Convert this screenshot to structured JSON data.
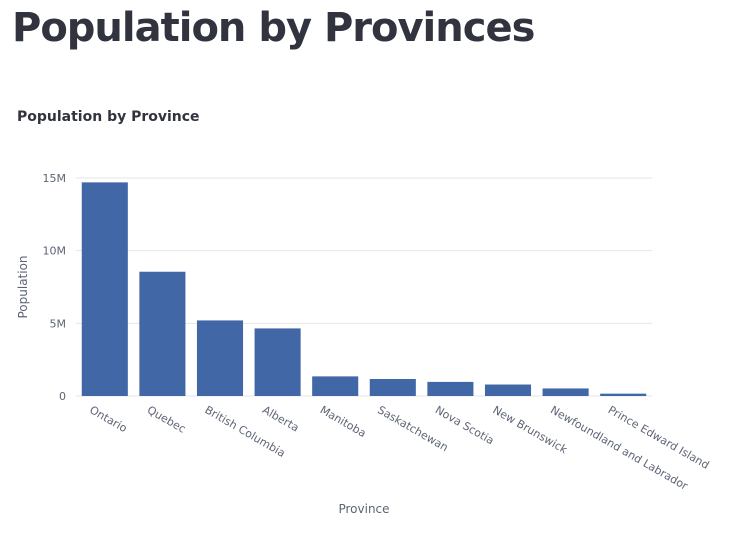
{
  "page": {
    "title": "Population by Provinces"
  },
  "chart_data": {
    "type": "bar",
    "title": "Population by Province",
    "xlabel": "Province",
    "ylabel": "Population",
    "categories": [
      "Ontario",
      "Quebec",
      "British Columbia",
      "Alberta",
      "Manitoba",
      "Saskatchewan",
      "Nova Scotia",
      "New Brunswick",
      "Newfoundland and Labrador",
      "Prince Edward Island"
    ],
    "values": [
      14700000,
      8550000,
      5200000,
      4650000,
      1350000,
      1170000,
      970000,
      790000,
      520000,
      160000
    ],
    "ylim": [
      0,
      15000000
    ],
    "yticks": [
      0,
      5000000,
      10000000,
      15000000
    ],
    "ytick_labels": [
      "0",
      "5M",
      "10M",
      "15M"
    ],
    "grid": true,
    "bar_color": "#4267a6"
  }
}
